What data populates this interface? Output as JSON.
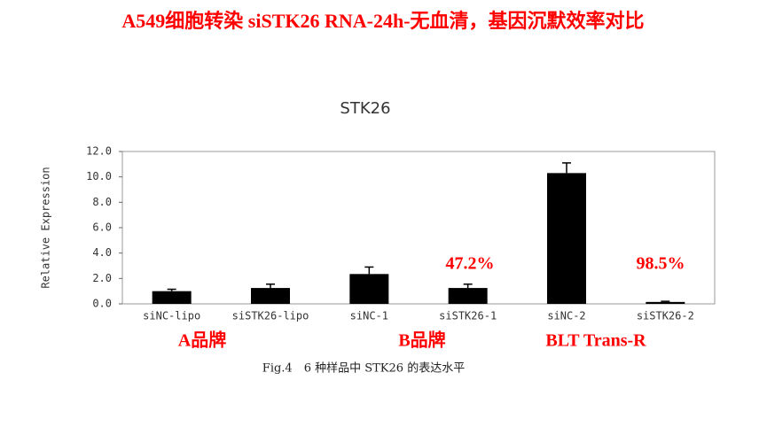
{
  "chart_data": {
    "type": "bar",
    "header": "A549细胞转染 siSTK26 RNA-24h-无血清，基因沉默效率对比",
    "title": "STK26",
    "y_label": "Relative Expression",
    "categories": [
      "siNC-lipo",
      "siSTK26-lipo",
      "siNC-1",
      "siSTK26-1",
      "siNC-2",
      "siSTK26-2"
    ],
    "values": [
      1.0,
      1.25,
      2.35,
      1.25,
      10.3,
      0.15
    ],
    "errors": [
      0.15,
      0.3,
      0.55,
      0.3,
      0.8,
      0.05
    ],
    "color": "#000000",
    "ylim": [
      0,
      12
    ],
    "yticks": [
      {
        "value": 0,
        "label": "0.0"
      },
      {
        "value": 2,
        "label": "2.0"
      },
      {
        "value": 4,
        "label": "4.0"
      },
      {
        "value": 6,
        "label": "6.0"
      },
      {
        "value": 8,
        "label": "8.0"
      },
      {
        "value": 10,
        "label": "10.0"
      },
      {
        "value": 12,
        "label": "12.0"
      }
    ],
    "grid": false,
    "annotations": [
      "47.2%",
      "98.5%"
    ],
    "group_labels": [
      "A品牌",
      "B品牌",
      "BLT Trans-R"
    ],
    "caption": "Fig.4　6 种样品中 STK26 的表达水平"
  }
}
